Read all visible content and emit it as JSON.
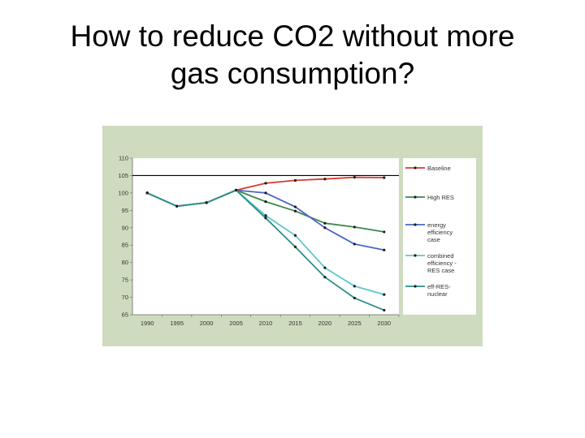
{
  "slide": {
    "title_line1": "How to reduce CO2 without more",
    "title_line2": "gas consumption?"
  },
  "chart_data": {
    "type": "line",
    "title": "",
    "xlabel": "",
    "ylabel": "",
    "x": [
      1990,
      1995,
      2000,
      2005,
      2010,
      2015,
      2020,
      2025,
      2030
    ],
    "ylim": [
      65,
      110
    ],
    "yticks": [
      65,
      70,
      75,
      80,
      85,
      90,
      95,
      100,
      105,
      110
    ],
    "reference_line": 105,
    "grid": false,
    "legend_position": "right",
    "series": [
      {
        "name": "Baseline",
        "color": "#d93a2b",
        "values": [
          100,
          96.2,
          97.2,
          100.8,
          102.8,
          103.6,
          104.0,
          104.5,
          104.4
        ]
      },
      {
        "name": "High RES",
        "color": "#3a8a4a",
        "values": [
          100,
          96.2,
          97.2,
          100.8,
          97.5,
          94.8,
          91.3,
          90.2,
          88.8
        ]
      },
      {
        "name": "energy efficiency case",
        "color": "#4a66c8",
        "values": [
          100,
          96.2,
          97.2,
          100.8,
          100.0,
          96.0,
          90.0,
          85.3,
          83.6
        ]
      },
      {
        "name": "combined efficiency - RES case",
        "color": "#5cc8cc",
        "values": [
          100,
          96.2,
          97.2,
          100.8,
          93.5,
          87.8,
          78.5,
          73.2,
          70.8
        ]
      },
      {
        "name": "eff-RES-nuclear",
        "color": "#2b8e8a",
        "values": [
          100,
          96.2,
          97.2,
          100.8,
          92.8,
          84.5,
          75.8,
          69.8,
          66.3
        ]
      }
    ],
    "legend_lines": [
      [
        "Baseline"
      ],
      [
        "High RES"
      ],
      [
        "energy",
        "efficiency",
        "case"
      ],
      [
        "combined",
        "efficiency -",
        "RES case"
      ],
      [
        "eff-RES-",
        "nuclear"
      ]
    ]
  }
}
